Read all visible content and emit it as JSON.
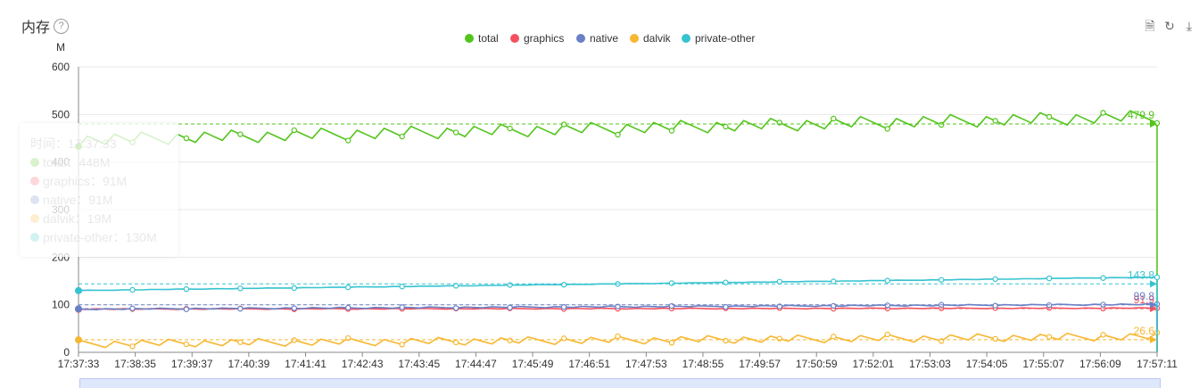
{
  "header": {
    "title": "内存",
    "help_icon": "?"
  },
  "toolbar": {
    "items": [
      "doc-icon",
      "refresh-icon",
      "download-icon"
    ]
  },
  "tooltip": {
    "time_label": "时间：17:37:33",
    "rows": [
      {
        "text": "total：448M",
        "color": "#52c41a"
      },
      {
        "text": "graphics：91M",
        "color": "#f5515f"
      },
      {
        "text": "native：91M",
        "color": "#6a80c6"
      },
      {
        "text": "dalvik：19M",
        "color": "#f7b731"
      },
      {
        "text": "private-other：130M",
        "color": "#36c3d0"
      }
    ]
  },
  "chart_data": {
    "type": "line",
    "y_unit": "M",
    "ylim": [
      0,
      600
    ],
    "yticks": [
      0,
      100,
      200,
      300,
      400,
      500,
      600
    ],
    "xtick_labels": [
      "17:37:33",
      "17:38:35",
      "17:39:37",
      "17:40:39",
      "17:41:41",
      "17:42:43",
      "17:43:45",
      "17:44:47",
      "17:45:49",
      "17:46:51",
      "17:47:53",
      "17:48:55",
      "17:49:57",
      "17:50:59",
      "17:52:01",
      "17:53:03",
      "17:54:05",
      "17:55:07",
      "17:56:09",
      "17:57:11"
    ],
    "series": [
      {
        "name": "total",
        "color": "#52c41a",
        "start": 448,
        "end": 497,
        "saw": 30,
        "avg": 479.9,
        "avg_label": "479.9"
      },
      {
        "name": "graphics",
        "color": "#f5515f",
        "start": 91,
        "end": 93,
        "saw": 2,
        "avg": 91.9,
        "avg_label": "91.9"
      },
      {
        "name": "native",
        "color": "#6a80c6",
        "start": 91,
        "end": 101,
        "saw": 3,
        "avg": 99.8,
        "avg_label": "99.8"
      },
      {
        "name": "dalvik",
        "color": "#f7b731",
        "start": 19,
        "end": 34,
        "saw": 18,
        "avg": 26.6,
        "avg_label": "26.6"
      },
      {
        "name": "private-other",
        "color": "#36c3d0",
        "start": 130,
        "end": 158,
        "saw": 1,
        "avg": 143.8,
        "avg_label": "143.8"
      }
    ],
    "grid": true,
    "legend": "top-center"
  }
}
